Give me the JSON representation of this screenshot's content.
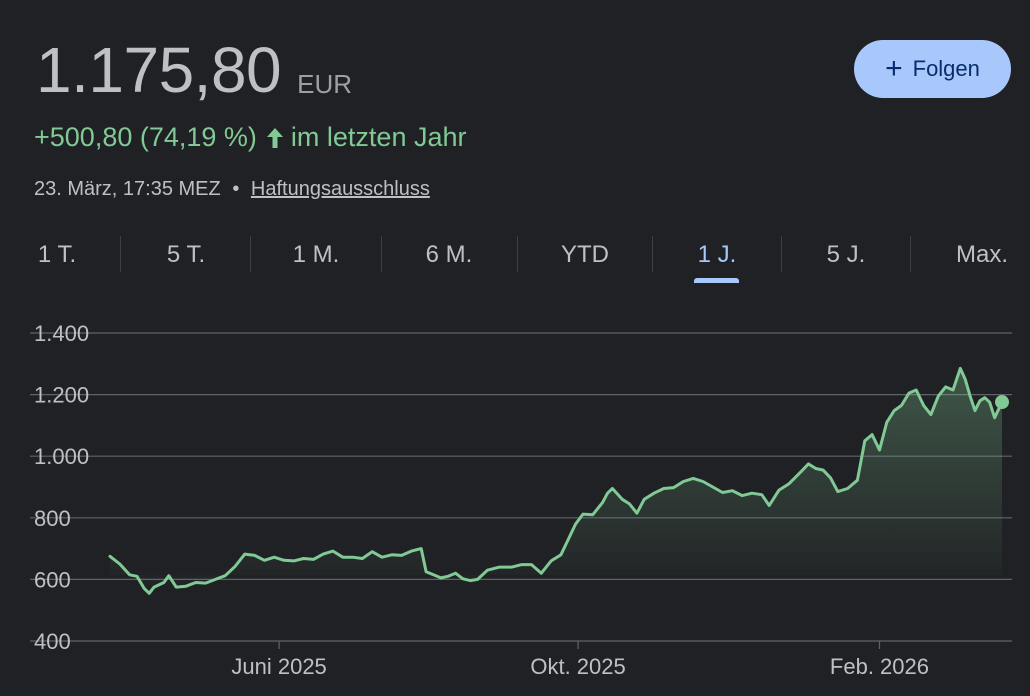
{
  "quote": {
    "price": "1.175,80",
    "currency": "EUR",
    "change": "+500,80 (74,19 %)",
    "change_period": "im letzten Jahr",
    "timestamp": "23. März, 17:35 MEZ",
    "separator": "•",
    "disclaimer": "Haftungsausschluss"
  },
  "follow_button": {
    "label": "Folgen",
    "icon": "plus-icon"
  },
  "tabs": [
    {
      "label": "1 T."
    },
    {
      "label": "5 T."
    },
    {
      "label": "1 M."
    },
    {
      "label": "6 M."
    },
    {
      "label": "YTD"
    },
    {
      "label": "1 J."
    },
    {
      "label": "5 J."
    },
    {
      "label": "Max."
    }
  ],
  "active_tab": "1 J.",
  "colors": {
    "background": "#202124",
    "line": "#81c995",
    "accent": "#a8c7fa",
    "grid": "#5f6368",
    "text_muted": "#bdc1c6"
  },
  "chart_data": {
    "type": "area",
    "y_ticks": [
      "1.400",
      "1.200",
      "1.000",
      "800",
      "600",
      "400"
    ],
    "y_tick_values": [
      1400,
      1200,
      1000,
      800,
      600,
      400
    ],
    "ylim": [
      400,
      1400
    ],
    "x_ticks": [
      {
        "label": "Juni 2025",
        "date": "2025-06-01"
      },
      {
        "label": "Okt. 2025",
        "date": "2025-10-01"
      },
      {
        "label": "Feb. 2026",
        "date": "2026-02-01"
      }
    ],
    "xlim": [
      "2025-03-24",
      "2026-03-23"
    ],
    "grid": true,
    "series": [
      {
        "points": [
          [
            "2025-03-24",
            675
          ],
          [
            "2025-03-28",
            650
          ],
          [
            "2025-04-01",
            615
          ],
          [
            "2025-04-04",
            610
          ],
          [
            "2025-04-07",
            570
          ],
          [
            "2025-04-09",
            555
          ],
          [
            "2025-04-11",
            575
          ],
          [
            "2025-04-15",
            590
          ],
          [
            "2025-04-17",
            612
          ],
          [
            "2025-04-20",
            575
          ],
          [
            "2025-04-24",
            578
          ],
          [
            "2025-04-28",
            590
          ],
          [
            "2025-05-02",
            588
          ],
          [
            "2025-05-06",
            600
          ],
          [
            "2025-05-10",
            612
          ],
          [
            "2025-05-14",
            642
          ],
          [
            "2025-05-18",
            682
          ],
          [
            "2025-05-22",
            678
          ],
          [
            "2025-05-26",
            662
          ],
          [
            "2025-05-30",
            672
          ],
          [
            "2025-06-03",
            662
          ],
          [
            "2025-06-07",
            660
          ],
          [
            "2025-06-11",
            668
          ],
          [
            "2025-06-15",
            665
          ],
          [
            "2025-06-19",
            682
          ],
          [
            "2025-06-23",
            692
          ],
          [
            "2025-06-27",
            672
          ],
          [
            "2025-07-01",
            672
          ],
          [
            "2025-07-05",
            668
          ],
          [
            "2025-07-09",
            690
          ],
          [
            "2025-07-13",
            672
          ],
          [
            "2025-07-17",
            680
          ],
          [
            "2025-07-21",
            678
          ],
          [
            "2025-07-25",
            692
          ],
          [
            "2025-07-29",
            700
          ],
          [
            "2025-07-31",
            625
          ],
          [
            "2025-08-03",
            615
          ],
          [
            "2025-08-06",
            605
          ],
          [
            "2025-08-09",
            610
          ],
          [
            "2025-08-12",
            620
          ],
          [
            "2025-08-15",
            602
          ],
          [
            "2025-08-18",
            596
          ],
          [
            "2025-08-21",
            600
          ],
          [
            "2025-08-25",
            630
          ],
          [
            "2025-08-30",
            640
          ],
          [
            "2025-09-04",
            640
          ],
          [
            "2025-09-08",
            648
          ],
          [
            "2025-09-12",
            648
          ],
          [
            "2025-09-16",
            620
          ],
          [
            "2025-09-20",
            660
          ],
          [
            "2025-09-24",
            680
          ],
          [
            "2025-09-27",
            730
          ],
          [
            "2025-09-30",
            780
          ],
          [
            "2025-10-03",
            812
          ],
          [
            "2025-10-07",
            810
          ],
          [
            "2025-10-11",
            850
          ],
          [
            "2025-10-13",
            880
          ],
          [
            "2025-10-15",
            895
          ],
          [
            "2025-10-19",
            860
          ],
          [
            "2025-10-22",
            845
          ],
          [
            "2025-10-25",
            815
          ],
          [
            "2025-10-28",
            860
          ],
          [
            "2025-11-01",
            880
          ],
          [
            "2025-11-05",
            895
          ],
          [
            "2025-11-09",
            898
          ],
          [
            "2025-11-13",
            918
          ],
          [
            "2025-11-17",
            928
          ],
          [
            "2025-11-21",
            918
          ],
          [
            "2025-11-25",
            900
          ],
          [
            "2025-11-29",
            882
          ],
          [
            "2025-12-03",
            888
          ],
          [
            "2025-12-07",
            872
          ],
          [
            "2025-12-11",
            880
          ],
          [
            "2025-12-15",
            875
          ],
          [
            "2025-12-18",
            840
          ],
          [
            "2025-12-22",
            890
          ],
          [
            "2025-12-26",
            910
          ],
          [
            "2025-12-31",
            950
          ],
          [
            "2026-01-03",
            975
          ],
          [
            "2026-01-06",
            960
          ],
          [
            "2026-01-09",
            955
          ],
          [
            "2026-01-12",
            930
          ],
          [
            "2026-01-15",
            885
          ],
          [
            "2026-01-19",
            895
          ],
          [
            "2026-01-23",
            922
          ],
          [
            "2026-01-26",
            1050
          ],
          [
            "2026-01-29",
            1070
          ],
          [
            "2026-02-01",
            1020
          ],
          [
            "2026-02-04",
            1110
          ],
          [
            "2026-02-07",
            1148
          ],
          [
            "2026-02-10",
            1165
          ],
          [
            "2026-02-13",
            1205
          ],
          [
            "2026-02-16",
            1215
          ],
          [
            "2026-02-19",
            1165
          ],
          [
            "2026-02-22",
            1135
          ],
          [
            "2026-02-25",
            1195
          ],
          [
            "2026-02-28",
            1225
          ],
          [
            "2026-03-03",
            1215
          ],
          [
            "2026-03-06",
            1285
          ],
          [
            "2026-03-08",
            1250
          ],
          [
            "2026-03-10",
            1195
          ],
          [
            "2026-03-12",
            1148
          ],
          [
            "2026-03-14",
            1180
          ],
          [
            "2026-03-16",
            1190
          ],
          [
            "2026-03-18",
            1175
          ],
          [
            "2026-03-20",
            1125
          ],
          [
            "2026-03-23",
            1175.8
          ]
        ]
      }
    ]
  }
}
